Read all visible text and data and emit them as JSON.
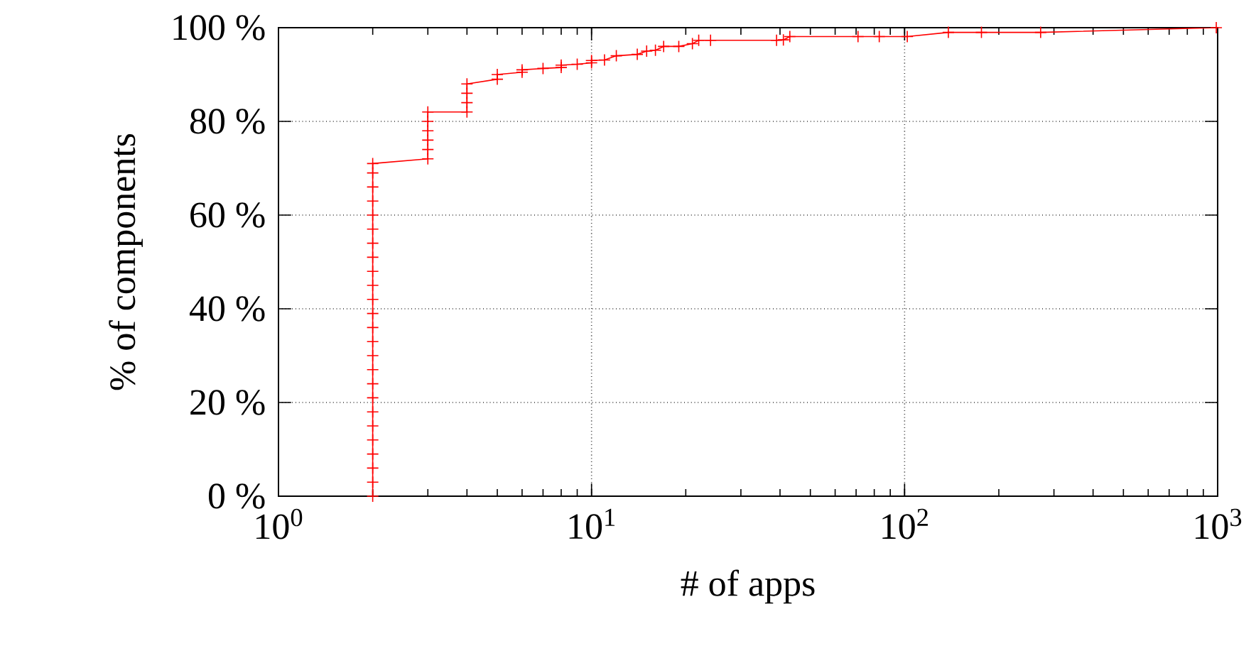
{
  "chart_data": {
    "type": "line",
    "xlabel": "# of apps",
    "ylabel": "% of components",
    "log": "x",
    "xlim": [
      1,
      1000
    ],
    "ylim": [
      0,
      100
    ],
    "xticks": [
      {
        "value": 1,
        "label": "10$^{0}$"
      },
      {
        "value": 10,
        "label": "10$^{1}$"
      },
      {
        "value": 100,
        "label": "10$^{2}$"
      },
      {
        "value": 1000,
        "label": "10$^{3}$"
      }
    ],
    "yticks": [
      {
        "value": 0,
        "label": "0 %"
      },
      {
        "value": 20,
        "label": "20 %"
      },
      {
        "value": 40,
        "label": "40 %"
      },
      {
        "value": 60,
        "label": "60 %"
      },
      {
        "value": 80,
        "label": "80 %"
      },
      {
        "value": 100,
        "label": "100 %"
      }
    ],
    "grid": true,
    "marker": "cross",
    "line_style": "solid",
    "series": [
      {
        "color": "#ff0000",
        "x": [
          2,
          2,
          2,
          2,
          2,
          2,
          2,
          2,
          2,
          2,
          2,
          2,
          2,
          2,
          2,
          2,
          2,
          2,
          2,
          2,
          2,
          2,
          2,
          2,
          2,
          3,
          3,
          3,
          3,
          3,
          3,
          4,
          4,
          4,
          4,
          5,
          5,
          6,
          6,
          7,
          8,
          8,
          9,
          10,
          10,
          11,
          12,
          14,
          15,
          16,
          17,
          19,
          21,
          22,
          24,
          39,
          41,
          43,
          71,
          83,
          102,
          138,
          176,
          272,
          990
        ],
        "values": [
          0,
          3,
          6,
          9,
          12,
          15,
          18,
          21,
          24,
          27,
          30,
          33,
          36,
          39,
          42,
          45,
          48,
          51,
          54,
          57,
          60,
          63,
          66,
          69,
          71,
          72,
          74,
          76,
          78,
          80,
          82,
          82,
          84,
          86,
          88,
          89,
          90,
          90.5,
          91,
          91.3,
          91.5,
          92,
          92.2,
          92.5,
          93,
          93.1,
          94,
          94.3,
          95,
          95.2,
          96,
          96,
          96.6,
          97.3,
          97.3,
          97.3,
          97.4,
          98.1,
          98.1,
          98.1,
          98.1,
          99,
          99,
          99,
          100
        ]
      }
    ]
  }
}
